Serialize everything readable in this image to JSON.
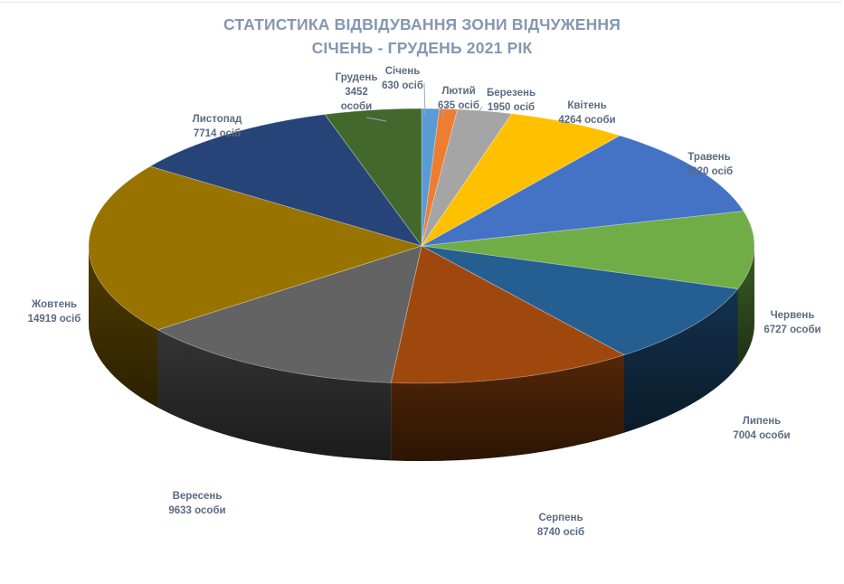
{
  "chart_data": {
    "type": "pie",
    "three_d": true,
    "title": "СТАТИСТИКА ВІДВІДУВАННЯ ЗОНИ ВІДЧУЖЕННЯ",
    "subtitle": "СІЧЕНЬ - ГРУДЕНЬ  2021 РІК",
    "legend": "none",
    "data_labels": "outside-with-leader-lines",
    "slices": [
      {
        "category": "Січень",
        "value": 630,
        "label_value": "630 осіб",
        "color": "#5b9bd5"
      },
      {
        "category": "Лютий",
        "value": 635,
        "label_value": "635 осіб",
        "color": "#ed7d31"
      },
      {
        "category": "Березень",
        "value": 1950,
        "label_value": "1950 осіб",
        "color": "#a5a5a5"
      },
      {
        "category": "Квітень",
        "value": 4264,
        "label_value": "4264 особи",
        "color": "#ffc000"
      },
      {
        "category": "Травень",
        "value": 7920,
        "label_value": "7920 осіб",
        "color": "#4472c4"
      },
      {
        "category": "Червень",
        "value": 6727,
        "label_value": "6727 особи",
        "color": "#70ad47"
      },
      {
        "category": "Липень",
        "value": 7004,
        "label_value": "7004 особи",
        "color": "#255e91"
      },
      {
        "category": "Серпень",
        "value": 8740,
        "label_value": "8740 осіб",
        "color": "#9e480e"
      },
      {
        "category": "Вересень",
        "value": 9633,
        "label_value": "9633 особи",
        "color": "#636363"
      },
      {
        "category": "Жовтень",
        "value": 14919,
        "label_value": "14919 осіб",
        "color": "#997300"
      },
      {
        "category": "Листопад",
        "value": 7714,
        "label_value": "7714 осіб",
        "color": "#264478"
      },
      {
        "category": "Грудень",
        "value": 3452,
        "label_value": "3452 особи",
        "color": "#43682b"
      }
    ]
  }
}
